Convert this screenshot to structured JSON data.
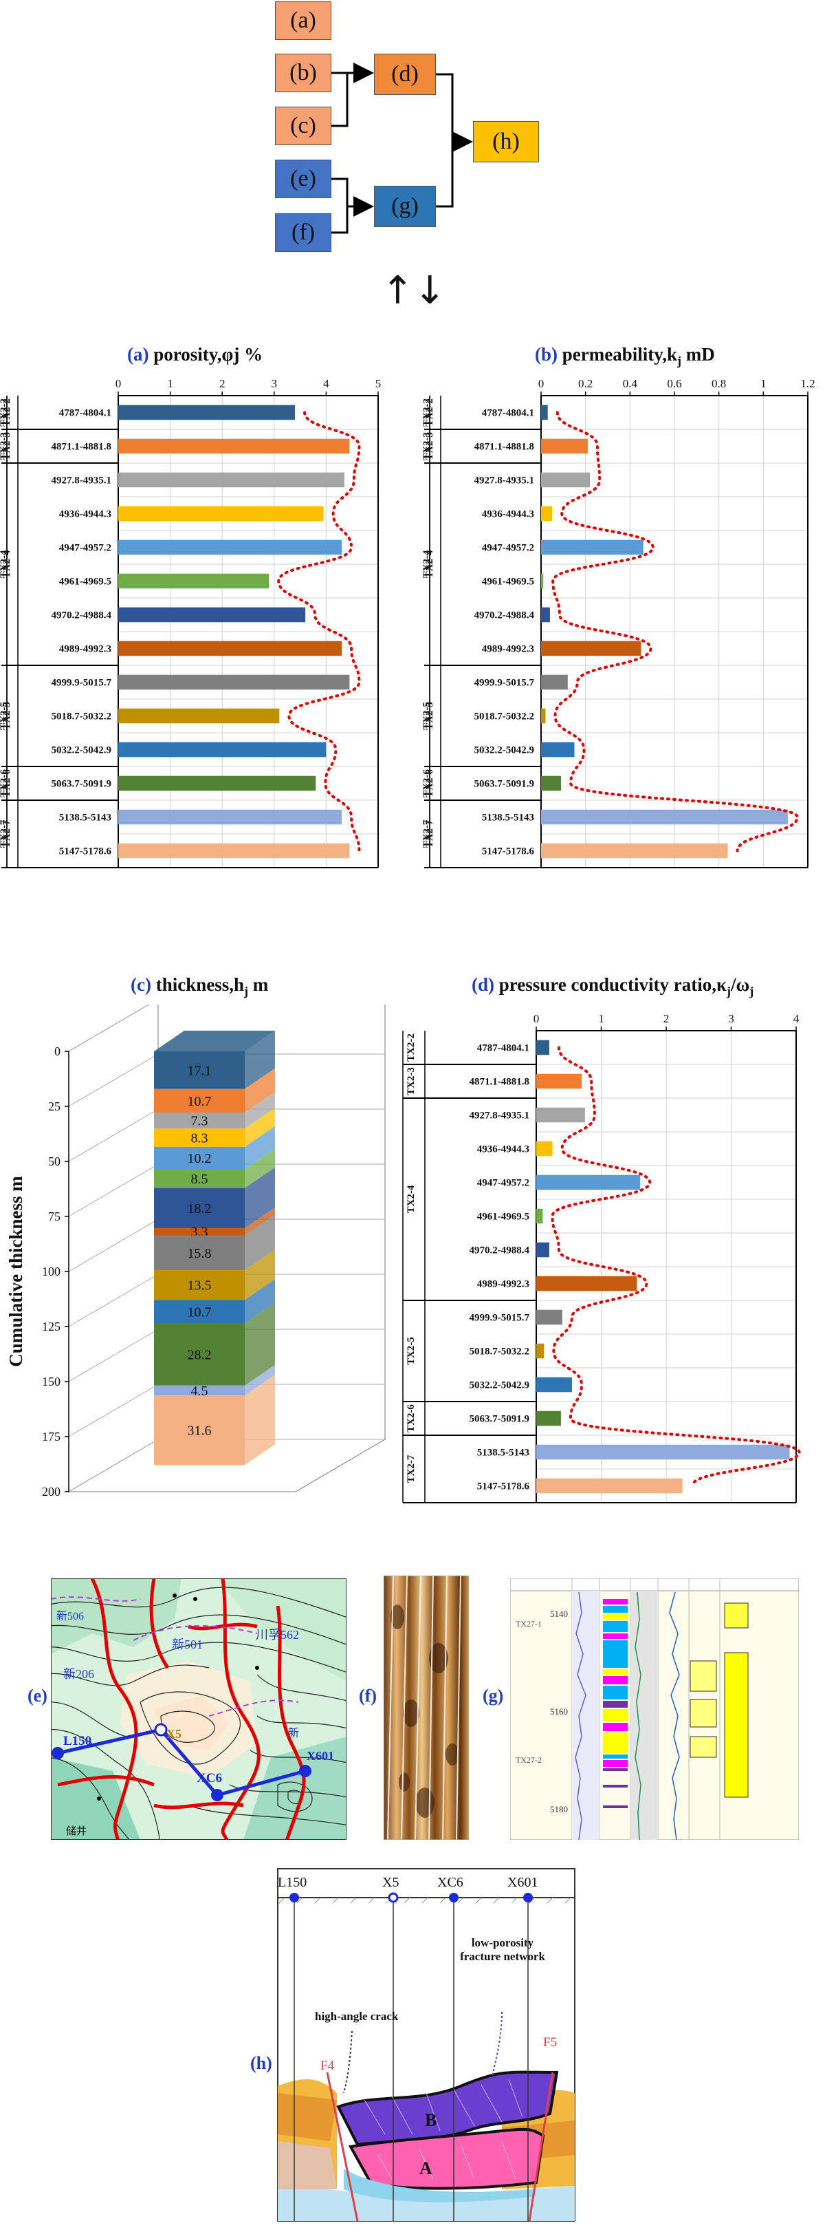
{
  "flow": {
    "boxes": [
      {
        "id": "a",
        "label": "(a)",
        "color": "#f4a070"
      },
      {
        "id": "b",
        "label": "(b)",
        "color": "#f4a070"
      },
      {
        "id": "c",
        "label": "(c)",
        "color": "#f4a070"
      },
      {
        "id": "d",
        "label": "(d)",
        "color": "#ee8a3a"
      },
      {
        "id": "e",
        "label": "(e)",
        "color": "#4472c4"
      },
      {
        "id": "f",
        "label": "(f)",
        "color": "#4472c4"
      },
      {
        "id": "g",
        "label": "(g)",
        "color": "#2e75b6"
      },
      {
        "id": "h",
        "label": "(h)",
        "color": "#ffc000"
      }
    ],
    "exchange_symbol": "↑↓"
  },
  "colors": {
    "letter": "#1f3dbd",
    "bar": [
      "#2e5f8a",
      "#ed7d31",
      "#a5a5a5",
      "#ffc000",
      "#5b9bd5",
      "#70ad47",
      "#2f5496",
      "#c55a11",
      "#7f7f7f",
      "#bf9000",
      "#2e75b6",
      "#548235",
      "#8faadc",
      "#f4b183"
    ],
    "trend": "#e00000"
  },
  "layers": {
    "ranges": [
      "4787-4804.1",
      "4871.1-4881.8",
      "4927.8-4935.1",
      "4936-4944.3",
      "4947-4957.2",
      "4961-4969.5",
      "4970.2-4988.4",
      "4989-4992.3",
      "4999.9-5015.7",
      "5018.7-5032.2",
      "5032.2-5042.9",
      "5063.7-5091.9",
      "5138.5-5143",
      "5147-5178.6"
    ],
    "groups": [
      {
        "label": "TX2-2",
        "start": 0,
        "end": 1
      },
      {
        "label": "TX2-3",
        "start": 1,
        "end": 2
      },
      {
        "label": "TX2-4",
        "start": 2,
        "end": 8
      },
      {
        "label": "TX2-5",
        "start": 8,
        "end": 11
      },
      {
        "label": "TX2-6",
        "start": 11,
        "end": 12
      },
      {
        "label": "TX2-7",
        "start": 12,
        "end": 14
      }
    ]
  },
  "panel_a": {
    "letter": "(a)",
    "title": "porosity,φj %",
    "chart_data": {
      "type": "bar",
      "categories": [
        "4787-4804.1",
        "4871.1-4881.8",
        "4927.8-4935.1",
        "4936-4944.3",
        "4947-4957.2",
        "4961-4969.5",
        "4970.2-4988.4",
        "4989-4992.3",
        "4999.9-5015.7",
        "5018.7-5032.2",
        "5032.2-5042.9",
        "5063.7-5091.9",
        "5138.5-5143",
        "5147-5178.6"
      ],
      "values": [
        3.4,
        4.45,
        4.35,
        3.95,
        4.3,
        2.9,
        3.6,
        4.3,
        4.45,
        3.1,
        4.0,
        3.8,
        4.3,
        4.45
      ],
      "xlim": [
        0,
        5
      ],
      "xticks": [
        "0",
        "1",
        "2",
        "3",
        "4",
        "5"
      ]
    }
  },
  "panel_b": {
    "letter": "(b)",
    "title": "permeability,k",
    "title_sub": "j",
    "title_unit": " mD",
    "chart_data": {
      "type": "bar",
      "categories": [
        "4787-4804.1",
        "4871.1-4881.8",
        "4927.8-4935.1",
        "4936-4944.3",
        "4947-4957.2",
        "4961-4969.5",
        "4970.2-4988.4",
        "4989-4992.3",
        "4999.9-5015.7",
        "5018.7-5032.2",
        "5032.2-5042.9",
        "5063.7-5091.9",
        "5138.5-5143",
        "5147-5178.6"
      ],
      "values": [
        0.03,
        0.21,
        0.22,
        0.05,
        0.46,
        0.01,
        0.04,
        0.45,
        0.12,
        0.02,
        0.15,
        0.09,
        1.11,
        0.84
      ],
      "xlim": [
        0,
        1.2
      ],
      "xticks": [
        "0",
        "0.2",
        "0.4",
        "0.6",
        "0.8",
        "1",
        "1.2"
      ]
    }
  },
  "panel_c": {
    "letter": "(c)",
    "title": "thickness,h",
    "title_sub": "j",
    "title_unit": " m",
    "chart_data": {
      "type": "bar",
      "stacked": true,
      "ylabel": "Cumulative thickness m",
      "yticks": [
        "0",
        "25",
        "50",
        "75",
        "100",
        "125",
        "150",
        "175",
        "200"
      ],
      "ylim": [
        0,
        200
      ],
      "segments": [
        {
          "value": 17.1,
          "label": "17.1"
        },
        {
          "value": 10.7,
          "label": "10.7"
        },
        {
          "value": 7.3,
          "label": "7.3"
        },
        {
          "value": 8.3,
          "label": "8.3"
        },
        {
          "value": 10.2,
          "label": "10.2"
        },
        {
          "value": 8.5,
          "label": "8.5"
        },
        {
          "value": 18.2,
          "label": "18.2"
        },
        {
          "value": 3.3,
          "label": "3.3"
        },
        {
          "value": 15.8,
          "label": "15.8"
        },
        {
          "value": 13.5,
          "label": "13.5"
        },
        {
          "value": 10.7,
          "label": "10.7"
        },
        {
          "value": 28.2,
          "label": "28.2"
        },
        {
          "value": 4.5,
          "label": "4.5"
        },
        {
          "value": 31.6,
          "label": "31.6"
        }
      ]
    }
  },
  "panel_d": {
    "letter": "(d)",
    "title": "pressure conductivity ratio,κ",
    "title_sub": "j",
    "title_mid": "/ω",
    "title_sub2": "j",
    "chart_data": {
      "type": "bar",
      "categories": [
        "4787-4804.1",
        "4871.1-4881.8",
        "4927.8-4935.1",
        "4936-4944.3",
        "4947-4957.2",
        "4961-4969.5",
        "4970.2-4988.4",
        "4989-4992.3",
        "4999.9-5015.7",
        "5018.7-5032.2",
        "5032.2-5042.9",
        "5063.7-5091.9",
        "5138.5-5143",
        "5147-5178.6"
      ],
      "values": [
        0.2,
        0.7,
        0.75,
        0.25,
        1.6,
        0.1,
        0.2,
        1.55,
        0.4,
        0.12,
        0.55,
        0.38,
        3.9,
        2.25
      ],
      "xlim": [
        0,
        4
      ],
      "xticks": [
        "0",
        "1",
        "2",
        "3",
        "4"
      ]
    }
  },
  "panel_e": {
    "letter": "(e)",
    "wells": [
      "L150",
      "X5",
      "XC6",
      "X601"
    ],
    "map_labels": [
      "新506",
      "新206",
      "新501",
      "川孚562",
      "新",
      "储井"
    ]
  },
  "panel_f": {
    "letter": "(f)"
  },
  "panel_g": {
    "letter": "(g)",
    "depths": [
      "5140",
      "5160",
      "5180"
    ],
    "zones": [
      "TX27-1",
      "TX27-2"
    ]
  },
  "panel_h": {
    "letter": "(h)",
    "wells": [
      "L150",
      "X5",
      "XC6",
      "X601"
    ],
    "annotations": {
      "crack": "high-angle crack",
      "network": "low-porosity fracture network",
      "fault1": "F4",
      "fault2": "F5",
      "bodyA": "A",
      "bodyB": "B"
    }
  }
}
